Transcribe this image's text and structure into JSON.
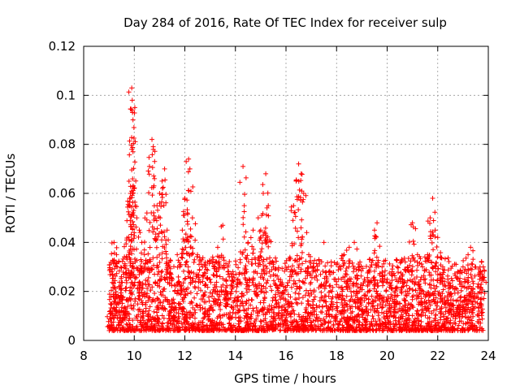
{
  "chart_data": {
    "type": "scatter",
    "title": "Day 284 of 2016, Rate Of TEC Index for receiver sulp",
    "xlabel": "GPS time / hours",
    "ylabel": "ROTI / TECUs",
    "xlim": [
      8,
      24
    ],
    "ylim": [
      0,
      0.12
    ],
    "x_ticks": [
      8,
      10,
      12,
      14,
      16,
      18,
      20,
      22,
      24
    ],
    "x_tick_labels": [
      "8",
      "10",
      "12",
      "14",
      "16",
      "18",
      "20",
      "22",
      "24"
    ],
    "y_ticks": [
      0,
      0.02,
      0.04,
      0.06,
      0.08,
      0.1,
      0.12
    ],
    "y_tick_labels": [
      "0",
      "0.02",
      "0.04",
      "0.06",
      "0.08",
      "0.1",
      "0.12"
    ],
    "grid": true,
    "marker": "+",
    "color": "#ff0000",
    "data_time_range": [
      9.0,
      23.8
    ],
    "series": [
      {
        "name": "ROTI",
        "points": [
          [
            9.05,
            0.012
          ],
          [
            9.1,
            0.028
          ],
          [
            9.2,
            0.04
          ],
          [
            9.3,
            0.035
          ],
          [
            9.4,
            0.022
          ],
          [
            9.5,
            0.018
          ],
          [
            9.6,
            0.03
          ],
          [
            9.7,
            0.041
          ],
          [
            9.8,
            0.055
          ],
          [
            9.85,
            0.06
          ],
          [
            9.9,
            0.103
          ],
          [
            9.92,
            0.098
          ],
          [
            9.93,
            0.093
          ],
          [
            9.95,
            0.09
          ],
          [
            9.9,
            0.078
          ],
          [
            9.95,
            0.077
          ],
          [
            10.0,
            0.062
          ],
          [
            10.1,
            0.05
          ],
          [
            10.2,
            0.045
          ],
          [
            10.3,
            0.04
          ],
          [
            10.4,
            0.035
          ],
          [
            10.5,
            0.052
          ],
          [
            10.6,
            0.071
          ],
          [
            10.7,
            0.082
          ],
          [
            10.75,
            0.079
          ],
          [
            10.8,
            0.066
          ],
          [
            10.9,
            0.055
          ],
          [
            11.0,
            0.06
          ],
          [
            11.1,
            0.065
          ],
          [
            11.2,
            0.07
          ],
          [
            11.3,
            0.045
          ],
          [
            11.4,
            0.03
          ],
          [
            11.5,
            0.025
          ],
          [
            11.6,
            0.02
          ],
          [
            11.7,
            0.035
          ],
          [
            11.8,
            0.03
          ],
          [
            11.9,
            0.045
          ],
          [
            12.0,
            0.058
          ],
          [
            12.1,
            0.052
          ],
          [
            12.15,
            0.074
          ],
          [
            12.2,
            0.07
          ],
          [
            12.3,
            0.05
          ],
          [
            12.5,
            0.035
          ],
          [
            12.7,
            0.03
          ],
          [
            12.9,
            0.032
          ],
          [
            13.1,
            0.034
          ],
          [
            13.3,
            0.038
          ],
          [
            13.5,
            0.047
          ],
          [
            13.7,
            0.03
          ],
          [
            13.9,
            0.028
          ],
          [
            14.1,
            0.025
          ],
          [
            14.3,
            0.071
          ],
          [
            14.35,
            0.055
          ],
          [
            14.5,
            0.04
          ],
          [
            14.7,
            0.045
          ],
          [
            14.9,
            0.05
          ],
          [
            15.0,
            0.045
          ],
          [
            15.1,
            0.06
          ],
          [
            15.2,
            0.068
          ],
          [
            15.3,
            0.055
          ],
          [
            15.5,
            0.03
          ],
          [
            15.7,
            0.025
          ],
          [
            15.9,
            0.022
          ],
          [
            16.1,
            0.03
          ],
          [
            16.3,
            0.055
          ],
          [
            16.4,
            0.065
          ],
          [
            16.5,
            0.072
          ],
          [
            16.6,
            0.068
          ],
          [
            16.7,
            0.06
          ],
          [
            16.9,
            0.035
          ],
          [
            17.1,
            0.03
          ],
          [
            17.3,
            0.033
          ],
          [
            17.5,
            0.04
          ],
          [
            17.7,
            0.028
          ],
          [
            17.9,
            0.025
          ],
          [
            18.1,
            0.03
          ],
          [
            18.3,
            0.035
          ],
          [
            18.5,
            0.038
          ],
          [
            18.7,
            0.04
          ],
          [
            18.9,
            0.03
          ],
          [
            19.1,
            0.025
          ],
          [
            19.3,
            0.033
          ],
          [
            19.5,
            0.045
          ],
          [
            19.6,
            0.048
          ],
          [
            19.8,
            0.03
          ],
          [
            20.0,
            0.025
          ],
          [
            20.2,
            0.028
          ],
          [
            20.4,
            0.03
          ],
          [
            20.6,
            0.025
          ],
          [
            20.8,
            0.03
          ],
          [
            21.0,
            0.048
          ],
          [
            21.2,
            0.035
          ],
          [
            21.4,
            0.03
          ],
          [
            21.6,
            0.035
          ],
          [
            21.7,
            0.05
          ],
          [
            21.8,
            0.058
          ],
          [
            21.9,
            0.045
          ],
          [
            22.0,
            0.042
          ],
          [
            22.2,
            0.03
          ],
          [
            22.4,
            0.025
          ],
          [
            22.6,
            0.022
          ],
          [
            22.8,
            0.028
          ],
          [
            23.0,
            0.03
          ],
          [
            23.2,
            0.035
          ],
          [
            23.3,
            0.038
          ],
          [
            23.5,
            0.03
          ],
          [
            23.7,
            0.028
          ],
          [
            23.8,
            0.03
          ]
        ]
      }
    ]
  }
}
